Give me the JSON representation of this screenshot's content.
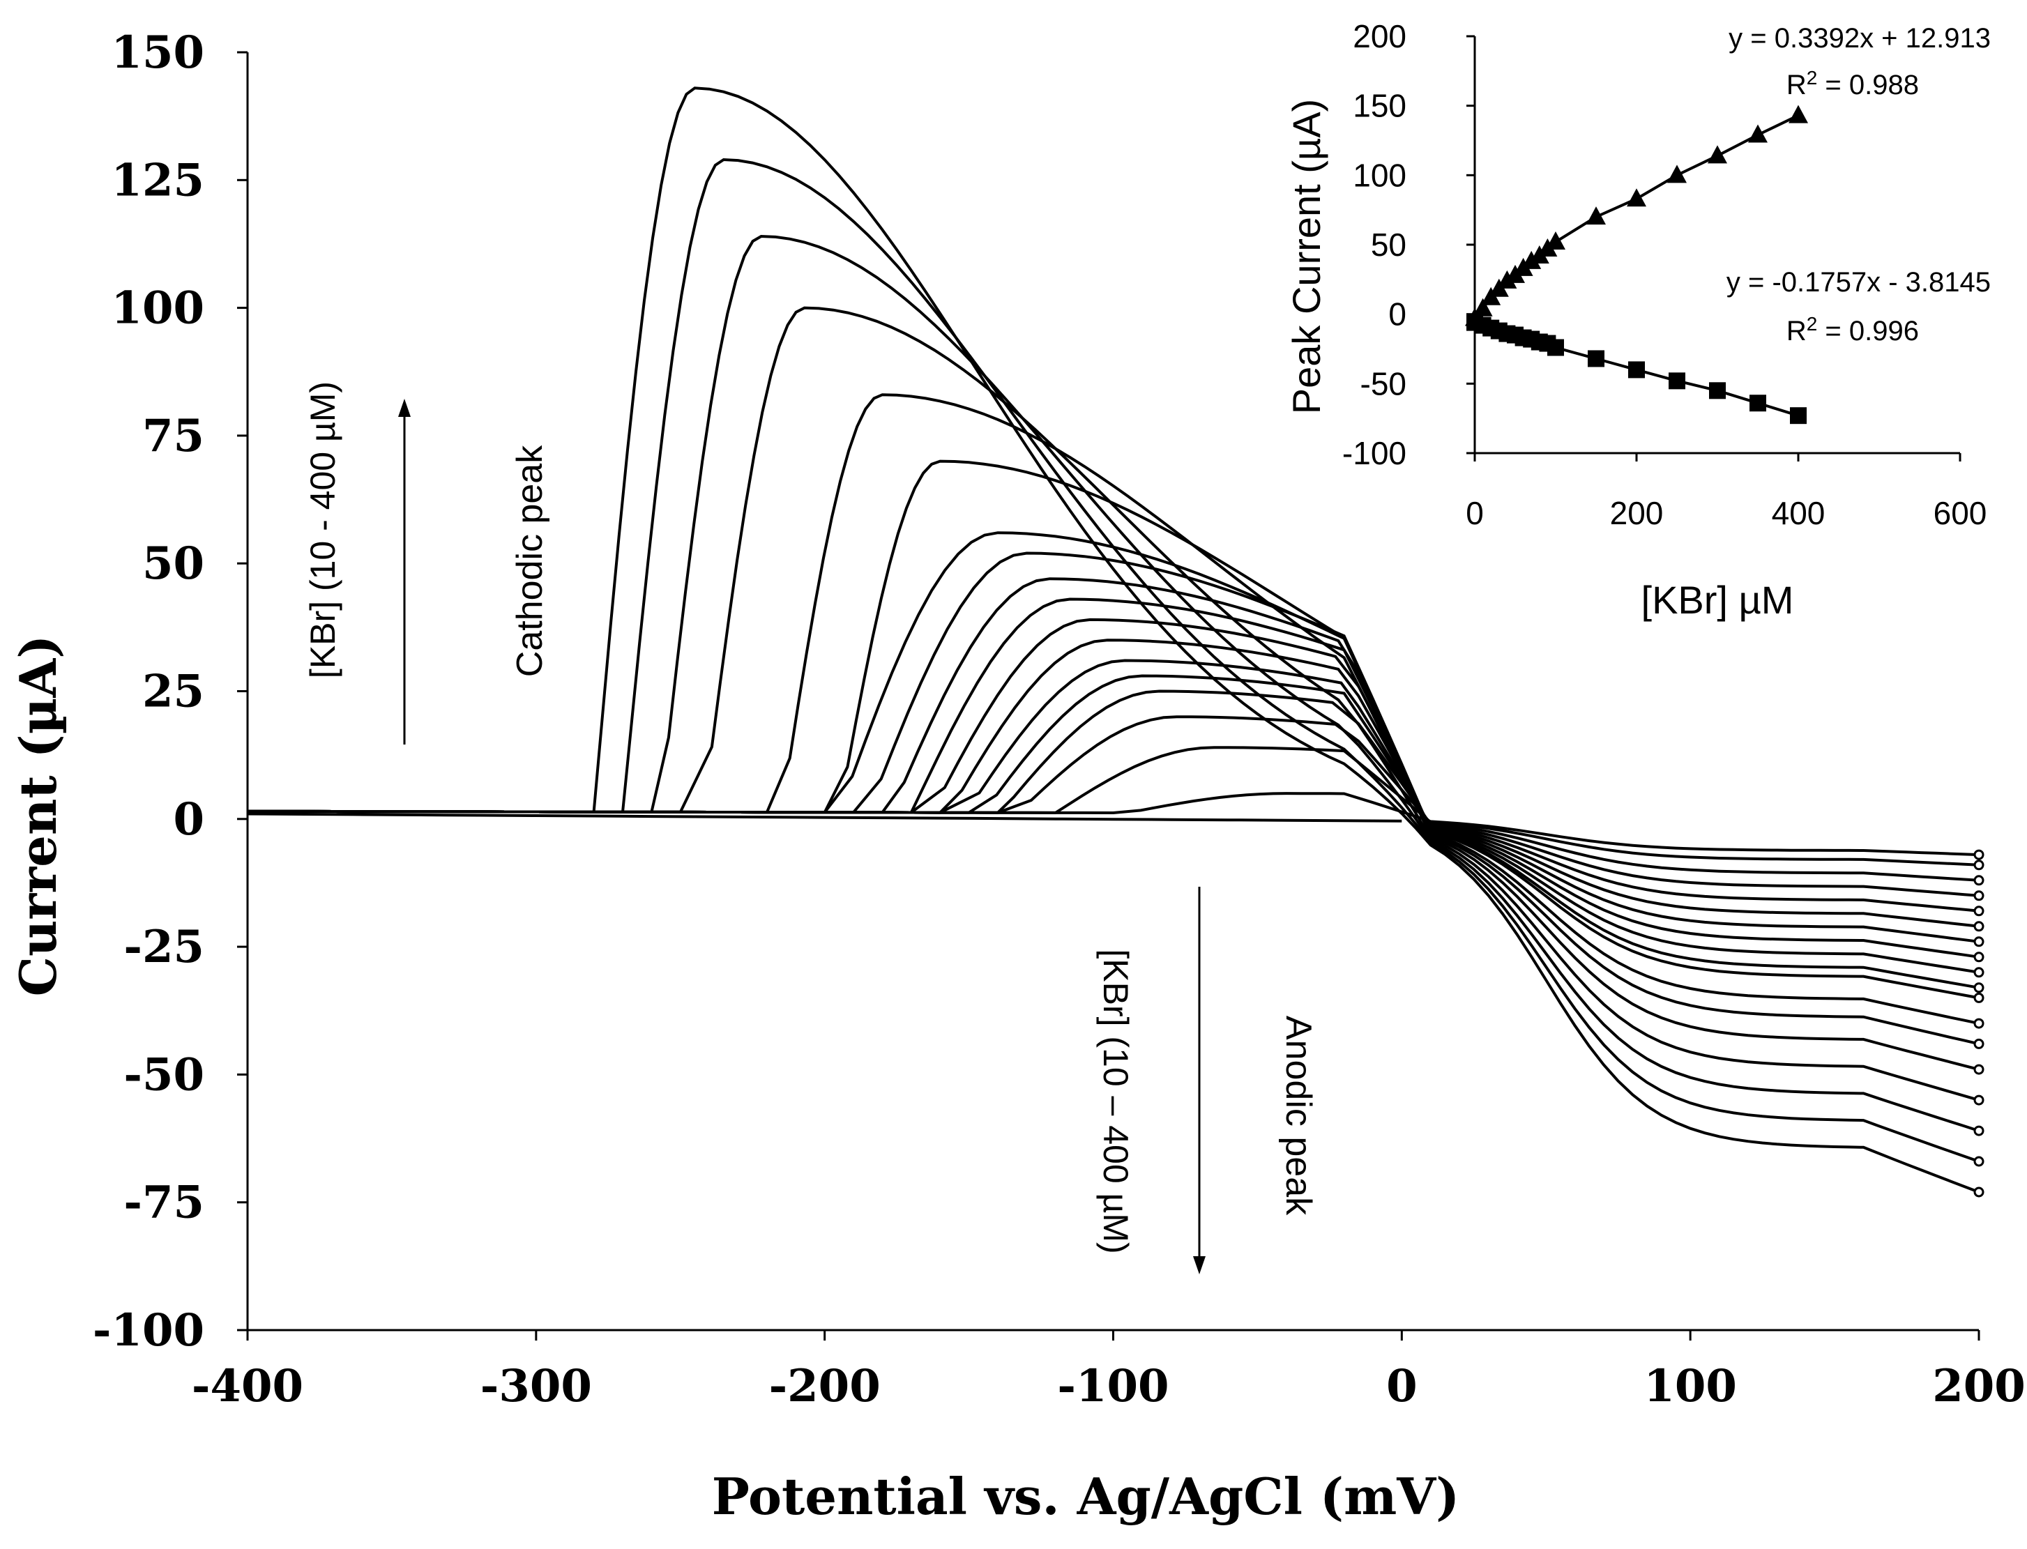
{
  "chart_data": [
    {
      "type": "line",
      "title": "",
      "xlabel": "Potential vs. Ag/AgCl (mV)",
      "ylabel": "Current (µA)",
      "xlim": [
        -400,
        200
      ],
      "ylim": [
        -100,
        150
      ],
      "x_ticks": [
        "-400",
        "-300",
        "-200",
        "-100",
        "0",
        "100",
        "200"
      ],
      "y_ticks": [
        "150",
        "125",
        "100",
        "75",
        "50",
        "25",
        "0",
        "-25",
        "-50",
        "-75",
        "-100"
      ],
      "grid": false,
      "cathodic_peaks": [
        {
          "x": -245,
          "y": 143
        },
        {
          "x": -235,
          "y": 129
        },
        {
          "x": -222,
          "y": 114
        },
        {
          "x": -207,
          "y": 100
        },
        {
          "x": -180,
          "y": 83
        },
        {
          "x": -160,
          "y": 70
        },
        {
          "x": -140,
          "y": 56
        },
        {
          "x": -130,
          "y": 52
        },
        {
          "x": -122,
          "y": 47
        },
        {
          "x": -115,
          "y": 43
        },
        {
          "x": -108,
          "y": 39
        },
        {
          "x": -102,
          "y": 35
        },
        {
          "x": -96,
          "y": 31
        },
        {
          "x": -90,
          "y": 28
        },
        {
          "x": -84,
          "y": 25
        },
        {
          "x": -78,
          "y": 20
        },
        {
          "x": -65,
          "y": 14
        },
        {
          "x": -40,
          "y": 5
        }
      ],
      "anodic_ends": [
        -73,
        -67,
        -61,
        -55,
        -49,
        -44,
        -40,
        -35,
        -33,
        -30,
        -27,
        -24,
        -21,
        -18,
        -15,
        -12,
        -9,
        -7
      ],
      "annotations": {
        "cathodic_label": "Cathodic peak",
        "cathodic_range": "[KBr] (10 - 400 µM)",
        "anodic_label": "Anodic peak",
        "anodic_range": "[KBr] (10 – 400 µM)"
      }
    },
    {
      "type": "scatter",
      "title": "",
      "xlabel": "[KBr] µM",
      "ylabel": "Peak Current (µA)",
      "xlim": [
        0,
        600
      ],
      "ylim": [
        -100,
        200
      ],
      "x_ticks": [
        "0",
        "200",
        "400",
        "600"
      ],
      "y_ticks": [
        "200",
        "150",
        "100",
        "50",
        "0",
        "-50",
        "-100"
      ],
      "series": [
        {
          "name": "Cathodic",
          "marker": "triangle",
          "x": [
            0,
            10,
            20,
            30,
            40,
            50,
            60,
            70,
            80,
            90,
            100,
            150,
            200,
            250,
            300,
            350,
            400
          ],
          "y": [
            -3,
            4,
            12,
            18,
            24,
            28,
            33,
            38,
            42,
            47,
            52,
            70,
            83,
            100,
            114,
            129,
            143
          ],
          "equation": "y = 0.3392x + 12.913",
          "r2": "R2 = 0.988",
          "r2_prefix": "R",
          "r2_sup": "2",
          "r2_value": " = 0.988"
        },
        {
          "name": "Anodic",
          "marker": "square",
          "x": [
            0,
            10,
            20,
            30,
            40,
            50,
            60,
            70,
            80,
            90,
            100,
            150,
            200,
            250,
            300,
            350,
            400
          ],
          "y": [
            -6,
            -8,
            -10,
            -12,
            -14,
            -15,
            -17,
            -18,
            -20,
            -21,
            -24,
            -32,
            -40,
            -48,
            -55,
            -64,
            -73
          ],
          "equation": "y = -0.1757x - 3.8145",
          "r2": "R2 = 0.996",
          "r2_prefix": "R",
          "r2_sup": "2",
          "r2_value": " = 0.996"
        }
      ]
    }
  ]
}
